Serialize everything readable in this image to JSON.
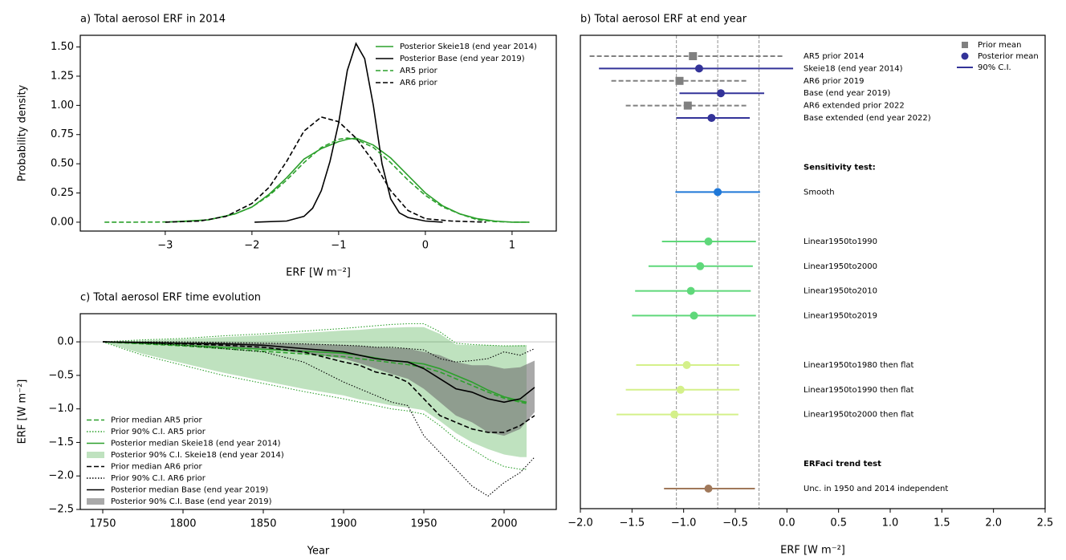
{
  "chart_data": [
    {
      "type": "line",
      "title": "a) Total aerosol ERF in 2014",
      "x_label": "ERF [W m⁻²]",
      "y_label": "Probability density",
      "xlim": [
        -3.98,
        1.51
      ],
      "ylim": [
        -0.076,
        1.6
      ],
      "xticks": [
        {
          "value": -3,
          "label": "−3"
        },
        {
          "value": -2,
          "label": "−2"
        },
        {
          "value": -1,
          "label": "−1"
        },
        0,
        1
      ],
      "yticks": [
        {
          "value": 0,
          "label": "0.00"
        },
        {
          "value": 0.25,
          "label": "0.25"
        },
        {
          "value": 0.5,
          "label": "0.50"
        },
        {
          "value": 0.75,
          "label": "0.75"
        },
        {
          "value": 1,
          "label": "1.00"
        },
        {
          "value": 1.25,
          "label": "1.25"
        },
        {
          "value": 1.5,
          "label": "1.50"
        }
      ],
      "legend": "upper right",
      "series": [
        {
          "name": "Posterior Skeie18 (end year 2014)",
          "color": "#2ca02c",
          "style": "solid",
          "x": [
            -3.0,
            -2.5,
            -2.2,
            -2.0,
            -1.8,
            -1.6,
            -1.4,
            -1.2,
            -1.0,
            -0.9,
            -0.8,
            -0.6,
            -0.4,
            -0.2,
            0,
            0.2,
            0.4,
            0.6,
            0.8,
            1.0,
            1.2
          ],
          "values": [
            0.0,
            0.02,
            0.07,
            0.13,
            0.24,
            0.38,
            0.54,
            0.63,
            0.69,
            0.71,
            0.72,
            0.66,
            0.55,
            0.4,
            0.25,
            0.14,
            0.07,
            0.03,
            0.01,
            0.0,
            0.0
          ]
        },
        {
          "name": "Posterior Base (end year 2019)",
          "color": "#000000",
          "style": "solid",
          "x": [
            -1.97,
            -1.6,
            -1.4,
            -1.3,
            -1.2,
            -1.1,
            -1.0,
            -0.9,
            -0.8,
            -0.7,
            -0.6,
            -0.5,
            -0.4,
            -0.3,
            -0.2,
            0,
            0.2
          ],
          "values": [
            0.0,
            0.01,
            0.05,
            0.12,
            0.27,
            0.52,
            0.85,
            1.3,
            1.53,
            1.4,
            1.0,
            0.5,
            0.2,
            0.08,
            0.04,
            0.01,
            0.0
          ]
        },
        {
          "name": "AR5 prior",
          "color": "#2ca02c",
          "style": "dashed",
          "x": [
            -3.7,
            -3.4,
            -3.1,
            -2.8,
            -2.5,
            -2.2,
            -2.0,
            -1.8,
            -1.6,
            -1.4,
            -1.2,
            -1.0,
            -0.9,
            -0.8,
            -0.6,
            -0.4,
            -0.2,
            0,
            0.2,
            0.4,
            0.6,
            0.8,
            1.0,
            1.2
          ],
          "values": [
            0.0,
            0.0,
            0.001,
            0.005,
            0.02,
            0.07,
            0.13,
            0.23,
            0.36,
            0.51,
            0.64,
            0.71,
            0.72,
            0.71,
            0.64,
            0.51,
            0.36,
            0.23,
            0.13,
            0.07,
            0.02,
            0.005,
            0.001,
            0.0
          ]
        },
        {
          "name": "AR6 prior",
          "color": "#000000",
          "style": "dashed",
          "x": [
            -3.0,
            -2.6,
            -2.3,
            -2.0,
            -1.8,
            -1.6,
            -1.4,
            -1.2,
            -1.0,
            -0.8,
            -0.6,
            -0.4,
            -0.2,
            0,
            0.3,
            0.7
          ],
          "values": [
            0.0,
            0.01,
            0.05,
            0.16,
            0.3,
            0.52,
            0.78,
            0.9,
            0.86,
            0.72,
            0.52,
            0.27,
            0.1,
            0.03,
            0.01,
            0.0
          ]
        }
      ]
    },
    {
      "type": "interval",
      "title": "b) Total aerosol ERF at end year",
      "x_label": "ERF [W m⁻²]",
      "xlim": [
        -2.0,
        2.5
      ],
      "xticks": [
        {
          "value": -2,
          "label": "−2.0"
        },
        {
          "value": -1.5,
          "label": "−1.5"
        },
        {
          "value": -1,
          "label": "−1.0"
        },
        {
          "value": -0.5,
          "label": "−0.5"
        },
        {
          "value": 0,
          "label": "0.0"
        },
        {
          "value": 0.5,
          "label": "0.5"
        },
        {
          "value": 1,
          "label": "1.0"
        },
        {
          "value": 1.5,
          "label": "1.5"
        },
        {
          "value": 2,
          "label": "2.0"
        },
        {
          "value": 2.5,
          "label": "2.5"
        }
      ],
      "reference_lines": [
        -1.07,
        -0.67,
        -0.27
      ],
      "legend_entries": [
        {
          "label": "Prior mean",
          "marker": "square",
          "color": "#808080"
        },
        {
          "label": "Posterior mean",
          "marker": "circle",
          "color": "#333399"
        },
        {
          "label": "90% C.I.",
          "marker": "line",
          "color": "#333399"
        }
      ],
      "groups": [
        {
          "rows": [
            {
              "label": "AR5 prior 2014",
              "kind": "prior",
              "color": "#808080",
              "low": -1.91,
              "mean": -0.91,
              "high": -0.03
            },
            {
              "label": "Skeie18 (end year 2014)",
              "kind": "posterior",
              "color": "#333399",
              "low": -1.82,
              "mean": -0.85,
              "high": 0.06
            },
            {
              "label": "AR6 prior 2019",
              "kind": "prior",
              "color": "#808080",
              "low": -1.7,
              "mean": -1.04,
              "high": -0.38
            },
            {
              "label": "Base (end year 2019)",
              "kind": "posterior",
              "color": "#333399",
              "low": -1.04,
              "mean": -0.64,
              "high": -0.22
            },
            {
              "label": "AR6 extended prior 2022",
              "kind": "prior",
              "color": "#808080",
              "low": -1.56,
              "mean": -0.96,
              "high": -0.39
            },
            {
              "label": "Base extended (end year 2022)",
              "kind": "posterior",
              "color": "#333399",
              "low": -1.07,
              "mean": -0.73,
              "high": -0.36
            }
          ]
        },
        {
          "title": "Sensitivity test:",
          "rows": [
            {
              "label": "Smooth",
              "kind": "posterior",
              "color": "#1f78d8",
              "low": -1.08,
              "mean": -0.67,
              "high": -0.26
            }
          ]
        },
        {
          "rows": [
            {
              "label": "Linear1950to1990",
              "kind": "posterior",
              "color": "#5fd87a",
              "low": -1.21,
              "mean": -0.76,
              "high": -0.3
            },
            {
              "label": "Linear1950to2000",
              "kind": "posterior",
              "color": "#5fd87a",
              "low": -1.34,
              "mean": -0.84,
              "high": -0.33
            },
            {
              "label": "Linear1950to2010",
              "kind": "posterior",
              "color": "#5fd87a",
              "low": -1.47,
              "mean": -0.93,
              "high": -0.35
            },
            {
              "label": "Linear1950to2019",
              "kind": "posterior",
              "color": "#5fd87a",
              "low": -1.5,
              "mean": -0.9,
              "high": -0.3
            }
          ]
        },
        {
          "rows": [
            {
              "label": "Linear1950to1980 then flat",
              "kind": "posterior",
              "color": "#d4f08a",
              "low": -1.46,
              "mean": -0.97,
              "high": -0.46
            },
            {
              "label": "Linear1950to1990 then flat",
              "kind": "posterior",
              "color": "#d4f08a",
              "low": -1.56,
              "mean": -1.03,
              "high": -0.46
            },
            {
              "label": "Linear1950to2000 then flat",
              "kind": "posterior",
              "color": "#d4f08a",
              "low": -1.65,
              "mean": -1.09,
              "high": -0.47
            }
          ]
        },
        {
          "title": "ERFaci trend test",
          "rows": [
            {
              "label": "Unc. in 1950 and 2014 independent",
              "kind": "posterior",
              "color": "#a0785a",
              "low": -1.19,
              "mean": -0.76,
              "high": -0.31
            }
          ]
        }
      ]
    },
    {
      "type": "line",
      "title": "c) Total aerosol ERF time evolution",
      "x_label": "Year",
      "y_label": "ERF [W m⁻²]",
      "xlim": [
        1736,
        2032.5
      ],
      "ylim": [
        -2.5,
        0.42
      ],
      "xticks": [
        1750,
        1800,
        1850,
        1900,
        1950,
        2000
      ],
      "yticks": [
        {
          "value": 0,
          "label": "0.0"
        },
        {
          "value": -0.5,
          "label": "−0.5"
        },
        {
          "value": -1,
          "label": "−1.0"
        },
        {
          "value": -1.5,
          "label": "−1.5"
        },
        {
          "value": -2,
          "label": "−2.0"
        },
        {
          "value": -2.5,
          "label": "−2.5"
        }
      ],
      "reference_lines": [
        0
      ],
      "legend": "lower left",
      "series": [
        {
          "name": "Prior median AR5 prior",
          "color": "#2ca02c",
          "style": "dashed",
          "x": [
            1750,
            1775,
            1800,
            1825,
            1850,
            1875,
            1900,
            1910,
            1920,
            1930,
            1940,
            1950,
            1960,
            1970,
            1980,
            1990,
            2000,
            2010,
            2014
          ],
          "values": [
            0,
            -0.03,
            -0.06,
            -0.1,
            -0.14,
            -0.18,
            -0.22,
            -0.25,
            -0.28,
            -0.31,
            -0.34,
            -0.38,
            -0.45,
            -0.55,
            -0.65,
            -0.75,
            -0.84,
            -0.9,
            -0.92
          ]
        },
        {
          "name": "Prior 90% C.I. AR5 prior",
          "color": "#2ca02c",
          "style": "dotted",
          "x": [
            1750,
            1775,
            1800,
            1825,
            1850,
            1875,
            1900,
            1910,
            1920,
            1930,
            1940,
            1950,
            1960,
            1970,
            1980,
            1990,
            2000,
            2010,
            2014
          ],
          "lower": [
            0,
            -0.2,
            -0.35,
            -0.5,
            -0.62,
            -0.74,
            -0.85,
            -0.9,
            -0.95,
            -1.0,
            -1.03,
            -1.08,
            -1.25,
            -1.45,
            -1.6,
            -1.75,
            -1.86,
            -1.9,
            -1.9
          ],
          "upper": [
            0,
            0.03,
            0.05,
            0.09,
            0.12,
            0.16,
            0.2,
            0.22,
            0.24,
            0.26,
            0.27,
            0.27,
            0.15,
            -0.02,
            -0.04,
            -0.05,
            -0.06,
            -0.06,
            -0.06
          ]
        },
        {
          "name": "Posterior median Skeie18 (end year 2014)",
          "color": "#2ca02c",
          "style": "solid",
          "x": [
            1750,
            1775,
            1800,
            1825,
            1850,
            1875,
            1900,
            1910,
            1920,
            1930,
            1940,
            1950,
            1960,
            1970,
            1980,
            1990,
            2000,
            2010,
            2014
          ],
          "values": [
            0,
            -0.02,
            -0.05,
            -0.08,
            -0.11,
            -0.14,
            -0.17,
            -0.2,
            -0.24,
            -0.28,
            -0.3,
            -0.33,
            -0.4,
            -0.5,
            -0.6,
            -0.72,
            -0.82,
            -0.88,
            -0.9
          ]
        },
        {
          "name": "Posterior 90% C.I. Skeie18 (end year 2014)",
          "color": "#2ca02c",
          "style": "band",
          "x": [
            1750,
            1775,
            1800,
            1825,
            1850,
            1875,
            1900,
            1910,
            1920,
            1930,
            1940,
            1950,
            1960,
            1970,
            1980,
            1990,
            2000,
            2010,
            2014
          ],
          "lower": [
            0,
            -0.18,
            -0.32,
            -0.46,
            -0.58,
            -0.7,
            -0.8,
            -0.86,
            -0.9,
            -0.95,
            -0.98,
            -1.02,
            -1.18,
            -1.36,
            -1.5,
            -1.6,
            -1.68,
            -1.72,
            -1.72
          ],
          "upper": [
            0,
            0.02,
            0.04,
            0.07,
            0.1,
            0.13,
            0.17,
            0.18,
            0.2,
            0.21,
            0.22,
            0.22,
            0.12,
            -0.04,
            -0.05,
            -0.05,
            -0.06,
            -0.05,
            -0.05
          ]
        },
        {
          "name": "Prior median AR6 prior",
          "color": "#000000",
          "style": "dashed",
          "x": [
            1750,
            1775,
            1800,
            1825,
            1850,
            1875,
            1900,
            1910,
            1920,
            1930,
            1940,
            1950,
            1960,
            1970,
            1980,
            1990,
            2000,
            2010,
            2019
          ],
          "values": [
            0,
            -0.01,
            -0.03,
            -0.05,
            -0.08,
            -0.15,
            -0.3,
            -0.35,
            -0.45,
            -0.5,
            -0.6,
            -0.85,
            -1.1,
            -1.2,
            -1.3,
            -1.35,
            -1.35,
            -1.25,
            -1.1
          ]
        },
        {
          "name": "Prior 90% C.I. AR6 prior",
          "color": "#000000",
          "style": "dotted",
          "x": [
            1750,
            1775,
            1800,
            1825,
            1850,
            1875,
            1900,
            1910,
            1920,
            1930,
            1940,
            1950,
            1960,
            1970,
            1980,
            1990,
            2000,
            2010,
            2019
          ],
          "lower": [
            0,
            -0.02,
            -0.05,
            -0.1,
            -0.15,
            -0.3,
            -0.6,
            -0.7,
            -0.8,
            -0.9,
            -0.95,
            -1.4,
            -1.65,
            -1.9,
            -2.15,
            -2.3,
            -2.1,
            -1.95,
            -1.72
          ],
          "upper": [
            0,
            0,
            0,
            -0.01,
            -0.02,
            -0.03,
            -0.05,
            -0.06,
            -0.08,
            -0.08,
            -0.1,
            -0.12,
            -0.25,
            -0.3,
            -0.28,
            -0.25,
            -0.15,
            -0.2,
            -0.1
          ]
        },
        {
          "name": "Posterior median Base (end year 2019)",
          "color": "#000000",
          "style": "solid",
          "x": [
            1750,
            1775,
            1800,
            1825,
            1850,
            1875,
            1900,
            1910,
            1920,
            1930,
            1940,
            1950,
            1960,
            1970,
            1980,
            1990,
            2000,
            2010,
            2019
          ],
          "values": [
            0,
            -0.01,
            -0.02,
            -0.03,
            -0.05,
            -0.1,
            -0.15,
            -0.2,
            -0.25,
            -0.28,
            -0.3,
            -0.4,
            -0.55,
            -0.7,
            -0.75,
            -0.85,
            -0.9,
            -0.85,
            -0.68
          ]
        },
        {
          "name": "Posterior 90% C.I. Base (end year 2019)",
          "color": "#707070",
          "style": "band",
          "x": [
            1750,
            1775,
            1800,
            1825,
            1850,
            1875,
            1900,
            1910,
            1920,
            1930,
            1940,
            1950,
            1960,
            1970,
            1980,
            1990,
            2000,
            2010,
            2019
          ],
          "lower": [
            0,
            -0.02,
            -0.04,
            -0.07,
            -0.1,
            -0.17,
            -0.25,
            -0.32,
            -0.4,
            -0.48,
            -0.55,
            -0.7,
            -0.9,
            -1.1,
            -1.2,
            -1.35,
            -1.4,
            -1.3,
            -1.05
          ],
          "upper": [
            0,
            0,
            -0.01,
            -0.01,
            -0.02,
            -0.03,
            -0.05,
            -0.06,
            -0.08,
            -0.09,
            -0.1,
            -0.15,
            -0.2,
            -0.3,
            -0.35,
            -0.35,
            -0.4,
            -0.38,
            -0.28
          ]
        }
      ]
    }
  ]
}
